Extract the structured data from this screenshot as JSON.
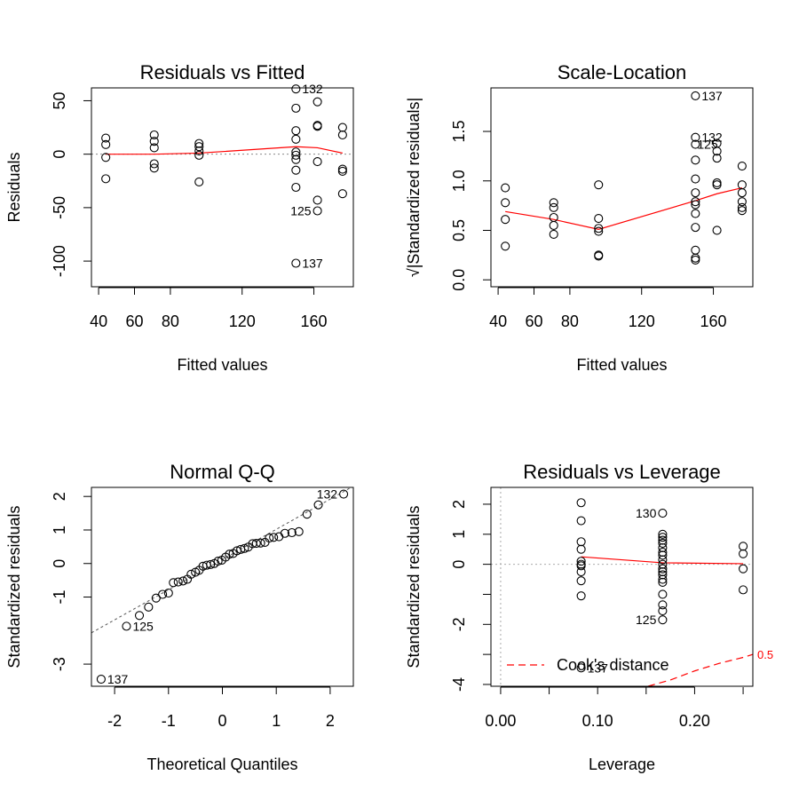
{
  "chart_data": [
    {
      "type": "scatter",
      "title": "Residuals vs Fitted",
      "xlabel": "Fitted values",
      "ylabel": "Residuals",
      "xlim": [
        36,
        182
      ],
      "ylim": [
        -124,
        62
      ],
      "xticks": [
        40,
        60,
        80,
        120,
        160
      ],
      "xtick_labels": [
        "40",
        "60",
        "80",
        "120",
        "160"
      ],
      "yticks": [
        -100,
        -50,
        0,
        50
      ],
      "ytick_labels": [
        "-100",
        "-50",
        "0",
        "50"
      ],
      "points": [
        {
          "x": 44,
          "y": 15
        },
        {
          "x": 44,
          "y": 9
        },
        {
          "x": 44,
          "y": -3
        },
        {
          "x": 44,
          "y": -23
        },
        {
          "x": 71,
          "y": 18
        },
        {
          "x": 71,
          "y": 12
        },
        {
          "x": 71,
          "y": 6
        },
        {
          "x": 71,
          "y": -9
        },
        {
          "x": 71,
          "y": -13
        },
        {
          "x": 96,
          "y": 10
        },
        {
          "x": 96,
          "y": 7
        },
        {
          "x": 96,
          "y": 3
        },
        {
          "x": 96,
          "y": -1
        },
        {
          "x": 96,
          "y": -26
        },
        {
          "x": 150,
          "y": 61
        },
        {
          "x": 150,
          "y": 43
        },
        {
          "x": 150,
          "y": 22
        },
        {
          "x": 150,
          "y": 14
        },
        {
          "x": 150,
          "y": 2
        },
        {
          "x": 150,
          "y": -1
        },
        {
          "x": 150,
          "y": -5
        },
        {
          "x": 150,
          "y": -15
        },
        {
          "x": 150,
          "y": -31
        },
        {
          "x": 150,
          "y": -102
        },
        {
          "x": 162,
          "y": 49
        },
        {
          "x": 162,
          "y": 27
        },
        {
          "x": 162,
          "y": 26
        },
        {
          "x": 162,
          "y": -7
        },
        {
          "x": 162,
          "y": -43
        },
        {
          "x": 162,
          "y": -53
        },
        {
          "x": 176,
          "y": 25
        },
        {
          "x": 176,
          "y": 18
        },
        {
          "x": 176,
          "y": -14
        },
        {
          "x": 176,
          "y": -16
        },
        {
          "x": 176,
          "y": -37
        }
      ],
      "point_labels": [
        {
          "x": 150,
          "y": 61,
          "text": "132",
          "side": "right"
        },
        {
          "x": 162,
          "y": -53,
          "text": "125",
          "side": "left"
        },
        {
          "x": 150,
          "y": -102,
          "text": "137",
          "side": "right"
        }
      ],
      "smoother": {
        "x": [
          44,
          71,
          96,
          150,
          162,
          176
        ],
        "y": [
          0,
          0,
          1,
          7,
          6,
          1
        ]
      },
      "reference_line": 0
    },
    {
      "type": "scatter",
      "title": "Scale-Location",
      "xlabel": "Fitted values",
      "ylabel": "√|Standardized residuals|",
      "xlim": [
        36,
        182
      ],
      "ylim": [
        -0.07,
        1.94
      ],
      "xticks": [
        40,
        60,
        80,
        120,
        160
      ],
      "xtick_labels": [
        "40",
        "60",
        "80",
        "120",
        "160"
      ],
      "yticks": [
        0.0,
        0.5,
        1.0,
        1.5
      ],
      "ytick_labels": [
        "0.0",
        "0.5",
        "1.0",
        "1.5"
      ],
      "points": [
        {
          "x": 44,
          "y": 0.93
        },
        {
          "x": 44,
          "y": 0.78
        },
        {
          "x": 44,
          "y": 0.61
        },
        {
          "x": 44,
          "y": 0.34
        },
        {
          "x": 71,
          "y": 0.78
        },
        {
          "x": 71,
          "y": 0.73
        },
        {
          "x": 71,
          "y": 0.63
        },
        {
          "x": 71,
          "y": 0.55
        },
        {
          "x": 71,
          "y": 0.46
        },
        {
          "x": 96,
          "y": 0.96
        },
        {
          "x": 96,
          "y": 0.62
        },
        {
          "x": 96,
          "y": 0.52
        },
        {
          "x": 96,
          "y": 0.49
        },
        {
          "x": 96,
          "y": 0.25
        },
        {
          "x": 96,
          "y": 0.24
        },
        {
          "x": 150,
          "y": 1.86
        },
        {
          "x": 150,
          "y": 1.44
        },
        {
          "x": 150,
          "y": 1.37
        },
        {
          "x": 150,
          "y": 1.21
        },
        {
          "x": 150,
          "y": 1.02
        },
        {
          "x": 150,
          "y": 0.88
        },
        {
          "x": 150,
          "y": 0.79
        },
        {
          "x": 150,
          "y": 0.76
        },
        {
          "x": 150,
          "y": 0.67
        },
        {
          "x": 150,
          "y": 0.53
        },
        {
          "x": 150,
          "y": 0.3
        },
        {
          "x": 150,
          "y": 0.22
        },
        {
          "x": 150,
          "y": 0.2
        },
        {
          "x": 162,
          "y": 1.38
        },
        {
          "x": 162,
          "y": 1.3
        },
        {
          "x": 162,
          "y": 1.23
        },
        {
          "x": 162,
          "y": 0.98
        },
        {
          "x": 162,
          "y": 0.96
        },
        {
          "x": 162,
          "y": 0.5
        },
        {
          "x": 176,
          "y": 1.15
        },
        {
          "x": 176,
          "y": 0.96
        },
        {
          "x": 176,
          "y": 0.88
        },
        {
          "x": 176,
          "y": 0.79
        },
        {
          "x": 176,
          "y": 0.73
        },
        {
          "x": 176,
          "y": 0.7
        }
      ],
      "point_labels": [
        {
          "x": 150,
          "y": 1.86,
          "text": "137",
          "side": "right"
        },
        {
          "x": 150,
          "y": 1.44,
          "text": "132",
          "side": "right"
        },
        {
          "x": 150,
          "y": 1.37,
          "text": "125",
          "side": "overlap"
        }
      ],
      "smoother": {
        "x": [
          44,
          71,
          96,
          150,
          162,
          176
        ],
        "y": [
          0.69,
          0.61,
          0.51,
          0.8,
          0.87,
          0.93
        ]
      }
    },
    {
      "type": "scatter",
      "title": "Normal Q-Q",
      "xlabel": "Theoretical Quantiles",
      "ylabel": "Standardized residuals",
      "xlim": [
        -2.43,
        2.43
      ],
      "ylim": [
        -3.66,
        2.27
      ],
      "xticks": [
        -2,
        -1,
        0,
        1,
        2
      ],
      "xtick_labels": [
        "-2",
        "-1",
        "0",
        "1",
        "2"
      ],
      "yticks": [
        -3,
        -1,
        0,
        1,
        2
      ],
      "ytick_labels": [
        "-3",
        "-1",
        "0",
        "1",
        "2"
      ],
      "points": [
        {
          "x": -2.25,
          "y": -3.45
        },
        {
          "x": -1.78,
          "y": -1.87
        },
        {
          "x": -1.54,
          "y": -1.55
        },
        {
          "x": -1.37,
          "y": -1.3
        },
        {
          "x": -1.23,
          "y": -1.03
        },
        {
          "x": -1.11,
          "y": -0.92
        },
        {
          "x": -1.0,
          "y": -0.88
        },
        {
          "x": -0.91,
          "y": -0.57
        },
        {
          "x": -0.82,
          "y": -0.55
        },
        {
          "x": -0.73,
          "y": -0.52
        },
        {
          "x": -0.65,
          "y": -0.47
        },
        {
          "x": -0.58,
          "y": -0.32
        },
        {
          "x": -0.5,
          "y": -0.26
        },
        {
          "x": -0.43,
          "y": -0.2
        },
        {
          "x": -0.36,
          "y": -0.08
        },
        {
          "x": -0.29,
          "y": -0.05
        },
        {
          "x": -0.22,
          "y": -0.03
        },
        {
          "x": -0.15,
          "y": 0.0
        },
        {
          "x": -0.08,
          "y": 0.07
        },
        {
          "x": -0.01,
          "y": 0.1
        },
        {
          "x": 0.06,
          "y": 0.19
        },
        {
          "x": 0.13,
          "y": 0.28
        },
        {
          "x": 0.2,
          "y": 0.3
        },
        {
          "x": 0.27,
          "y": 0.38
        },
        {
          "x": 0.34,
          "y": 0.42
        },
        {
          "x": 0.41,
          "y": 0.45
        },
        {
          "x": 0.48,
          "y": 0.49
        },
        {
          "x": 0.56,
          "y": 0.59
        },
        {
          "x": 0.63,
          "y": 0.6
        },
        {
          "x": 0.71,
          "y": 0.61
        },
        {
          "x": 0.79,
          "y": 0.63
        },
        {
          "x": 0.87,
          "y": 0.76
        },
        {
          "x": 0.95,
          "y": 0.78
        },
        {
          "x": 1.05,
          "y": 0.8
        },
        {
          "x": 1.16,
          "y": 0.9
        },
        {
          "x": 1.29,
          "y": 0.92
        },
        {
          "x": 1.42,
          "y": 0.95
        },
        {
          "x": 1.57,
          "y": 1.47
        },
        {
          "x": 1.78,
          "y": 1.75
        },
        {
          "x": 2.25,
          "y": 2.07
        }
      ],
      "point_labels": [
        {
          "x": 2.25,
          "y": 2.07,
          "text": "132",
          "side": "left"
        },
        {
          "x": -1.78,
          "y": -1.87,
          "text": "125",
          "side": "right"
        },
        {
          "x": -2.25,
          "y": -3.45,
          "text": "137",
          "side": "right"
        }
      ],
      "reference_line": {
        "intercept": 0.12,
        "slope": 0.9
      }
    },
    {
      "type": "scatter",
      "title": "Residuals vs Leverage",
      "xlabel": "Leverage",
      "ylabel": "Standardized residuals",
      "xlim": [
        -0.01,
        0.26
      ],
      "ylim": [
        -4.06,
        2.56
      ],
      "xticks": [
        0.0,
        0.1,
        0.2
      ],
      "xtick_labels": [
        "0.00",
        "0.10",
        "0.20"
      ],
      "minor_xticks": [
        0.05,
        0.15,
        0.25
      ],
      "yticks": [
        -4,
        -2,
        0,
        1,
        2
      ],
      "ytick_labels": [
        "-4",
        "-2",
        "0",
        "1",
        "2"
      ],
      "minor_yticks": [
        -3,
        -1
      ],
      "points": [
        {
          "x": 0.083,
          "y": 2.05
        },
        {
          "x": 0.083,
          "y": 1.45
        },
        {
          "x": 0.083,
          "y": 0.75
        },
        {
          "x": 0.083,
          "y": 0.5
        },
        {
          "x": 0.083,
          "y": 0.1
        },
        {
          "x": 0.083,
          "y": 0.0
        },
        {
          "x": 0.083,
          "y": -0.05
        },
        {
          "x": 0.083,
          "y": -0.25
        },
        {
          "x": 0.083,
          "y": -0.55
        },
        {
          "x": 0.083,
          "y": -1.05
        },
        {
          "x": 0.083,
          "y": -3.45
        },
        {
          "x": 0.167,
          "y": 1.7
        },
        {
          "x": 0.167,
          "y": 1.0
        },
        {
          "x": 0.167,
          "y": 0.9
        },
        {
          "x": 0.167,
          "y": 0.8
        },
        {
          "x": 0.167,
          "y": 0.7
        },
        {
          "x": 0.167,
          "y": 0.55
        },
        {
          "x": 0.167,
          "y": 0.4
        },
        {
          "x": 0.167,
          "y": 0.3
        },
        {
          "x": 0.167,
          "y": 0.15
        },
        {
          "x": 0.167,
          "y": 0.0
        },
        {
          "x": 0.167,
          "y": -0.15
        },
        {
          "x": 0.167,
          "y": -0.25
        },
        {
          "x": 0.167,
          "y": -0.35
        },
        {
          "x": 0.167,
          "y": -0.5
        },
        {
          "x": 0.167,
          "y": -0.6
        },
        {
          "x": 0.167,
          "y": -1.0
        },
        {
          "x": 0.167,
          "y": -1.35
        },
        {
          "x": 0.167,
          "y": -1.55
        },
        {
          "x": 0.167,
          "y": -1.85
        },
        {
          "x": 0.25,
          "y": 0.6
        },
        {
          "x": 0.25,
          "y": 0.35
        },
        {
          "x": 0.25,
          "y": -0.15
        },
        {
          "x": 0.25,
          "y": -0.85
        }
      ],
      "point_labels": [
        {
          "x": 0.167,
          "y": 1.7,
          "text": "130",
          "side": "left"
        },
        {
          "x": 0.167,
          "y": -1.85,
          "text": "125",
          "side": "left"
        },
        {
          "x": 0.083,
          "y": -3.45,
          "text": "137",
          "side": "right"
        }
      ],
      "smoother": {
        "x": [
          0.083,
          0.167,
          0.25
        ],
        "y": [
          0.25,
          0.05,
          0.02
        ]
      },
      "cooks_distance": {
        "level": 0.5,
        "label": "0.5",
        "x": [
          0.152,
          0.175,
          0.2,
          0.225,
          0.25,
          0.26
        ],
        "y": [
          -4.06,
          -3.85,
          -3.55,
          -3.3,
          -3.1,
          -3.0
        ]
      },
      "legend": {
        "label": "Cook's distance",
        "position": "bottom-left"
      }
    }
  ]
}
